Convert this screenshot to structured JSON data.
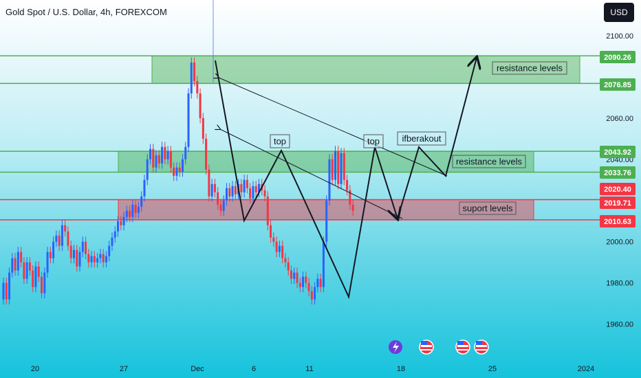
{
  "header": {
    "title": "Gold Spot / U.S. Dollar, 4h, FOREXCOM",
    "currency": "USD"
  },
  "chart_data": {
    "type": "candlestick",
    "ylim": [
      1952,
      2110
    ],
    "y_ticks": [
      "2100.00",
      "2060.00",
      "2040.00",
      "2000.00",
      "1980.00",
      "1960.00"
    ],
    "y_tick_values": [
      2100,
      2060,
      2040,
      2000,
      1980,
      1960
    ],
    "x_ticks": [
      "20",
      "27",
      "Dec",
      "6",
      "11",
      "18",
      "25",
      "2024"
    ],
    "price_badges": [
      {
        "text": "2090.26",
        "value": 2090.26,
        "color": "#4caf50"
      },
      {
        "text": "2076.85",
        "value": 2076.85,
        "color": "#4caf50"
      },
      {
        "text": "2043.92",
        "value": 2043.92,
        "color": "#4caf50"
      },
      {
        "text": "2033.76",
        "value": 2033.76,
        "color": "#4caf50"
      },
      {
        "text": "2020.40",
        "value": 2020.4,
        "color": "#f23645"
      },
      {
        "text": "2019.71",
        "value": 2019.71,
        "color": "#f23645"
      },
      {
        "text": "2010.63",
        "value": 2010.63,
        "color": "#f23645"
      }
    ],
    "horizontal_lines": [
      {
        "value": 2090.26,
        "color": "#4caf50"
      },
      {
        "value": 2076.85,
        "color": "#4caf50"
      },
      {
        "value": 2043.92,
        "color": "#4caf50"
      },
      {
        "value": 2033.76,
        "color": "#4caf50"
      },
      {
        "value": 2020.4,
        "color": "#f23645"
      },
      {
        "value": 2010.63,
        "color": "#f23645"
      }
    ],
    "zones": [
      {
        "label": "resistance levels",
        "from": 2090.26,
        "to": 2076.85,
        "color": "#4caf50"
      },
      {
        "label": "resistance levels",
        "from": 2043.92,
        "to": 2033.76,
        "color": "#4caf50"
      },
      {
        "label": "suport levels",
        "from": 2020.4,
        "to": 2010.63,
        "color": "#f23645"
      }
    ],
    "annotations": [
      "top",
      "top",
      "ifberakout"
    ],
    "colors": {
      "up": "#2962ff",
      "down": "#f23645"
    },
    "candles": [
      [
        1972,
        1980
      ],
      [
        1980,
        1972
      ],
      [
        1972,
        1985
      ],
      [
        1985,
        1992
      ],
      [
        1992,
        1986
      ],
      [
        1986,
        1995
      ],
      [
        1995,
        1990
      ],
      [
        1990,
        1982
      ],
      [
        1982,
        1990
      ],
      [
        1990,
        1986
      ],
      [
        1986,
        1978
      ],
      [
        1978,
        1988
      ],
      [
        1988,
        1983
      ],
      [
        1983,
        1975
      ],
      [
        1975,
        1985
      ],
      [
        1985,
        1995
      ],
      [
        1995,
        1992
      ],
      [
        1992,
        2000
      ],
      [
        2000,
        2003
      ],
      [
        2003,
        1998
      ],
      [
        1998,
        2008
      ],
      [
        2008,
        2005
      ],
      [
        2005,
        1998
      ],
      [
        1998,
        1992
      ],
      [
        1992,
        1996
      ],
      [
        1996,
        1988
      ],
      [
        1988,
        1995
      ],
      [
        1995,
        2000
      ],
      [
        2000,
        1994
      ],
      [
        1994,
        1990
      ],
      [
        1990,
        1993
      ],
      [
        1993,
        1990
      ],
      [
        1990,
        1992
      ],
      [
        1992,
        1994
      ],
      [
        1994,
        1990
      ],
      [
        1990,
        1993
      ],
      [
        1993,
        1998
      ],
      [
        1998,
        2002
      ],
      [
        2002,
        2005
      ],
      [
        2005,
        2010
      ],
      [
        2010,
        2008
      ],
      [
        2008,
        2012
      ],
      [
        2012,
        2015
      ],
      [
        2015,
        2012
      ],
      [
        2012,
        2018
      ],
      [
        2018,
        2014
      ],
      [
        2014,
        2017
      ],
      [
        2017,
        2022
      ],
      [
        2022,
        2030
      ],
      [
        2030,
        2040
      ],
      [
        2040,
        2045
      ],
      [
        2045,
        2036
      ],
      [
        2036,
        2042
      ],
      [
        2042,
        2038
      ],
      [
        2038,
        2046
      ],
      [
        2046,
        2040
      ],
      [
        2040,
        2044
      ],
      [
        2044,
        2036
      ],
      [
        2036,
        2032
      ],
      [
        2032,
        2036
      ],
      [
        2036,
        2034
      ],
      [
        2034,
        2040
      ],
      [
        2040,
        2046
      ],
      [
        2046,
        2072
      ],
      [
        2072,
        2087
      ],
      [
        2087,
        2078
      ],
      [
        2078,
        2072
      ],
      [
        2072,
        2060
      ],
      [
        2060,
        2050
      ],
      [
        2050,
        2035
      ],
      [
        2035,
        2022
      ],
      [
        2022,
        2028
      ],
      [
        2028,
        2024
      ],
      [
        2024,
        2018
      ],
      [
        2018,
        2015
      ],
      [
        2015,
        2020
      ],
      [
        2020,
        2026
      ],
      [
        2026,
        2022
      ],
      [
        2022,
        2027
      ],
      [
        2027,
        2023
      ],
      [
        2023,
        2028
      ],
      [
        2028,
        2024
      ],
      [
        2024,
        2030
      ],
      [
        2030,
        2026
      ],
      [
        2026,
        2021
      ],
      [
        2021,
        2027
      ],
      [
        2027,
        2024
      ],
      [
        2024,
        2028
      ],
      [
        2028,
        2025
      ],
      [
        2025,
        2022
      ],
      [
        2022,
        2008
      ],
      [
        2008,
        2002
      ],
      [
        2002,
        2000
      ],
      [
        2000,
        1995
      ],
      [
        1995,
        1998
      ],
      [
        1998,
        1992
      ],
      [
        1992,
        1990
      ],
      [
        1990,
        1986
      ],
      [
        1986,
        1982
      ],
      [
        1982,
        1985
      ],
      [
        1985,
        1980
      ],
      [
        1980,
        1978
      ],
      [
        1978,
        1983
      ],
      [
        1983,
        1980
      ],
      [
        1980,
        1976
      ],
      [
        1976,
        1972
      ],
      [
        1972,
        1978
      ],
      [
        1978,
        1982
      ],
      [
        1982,
        1978
      ],
      [
        1978,
        2000
      ],
      [
        2000,
        2020
      ],
      [
        2020,
        2040
      ],
      [
        2040,
        2030
      ],
      [
        2030,
        2044
      ],
      [
        2044,
        2028
      ],
      [
        2028,
        2043
      ],
      [
        2043,
        2030
      ],
      [
        2030,
        2025
      ],
      [
        2025,
        2018
      ],
      [
        2018,
        2015
      ]
    ]
  }
}
